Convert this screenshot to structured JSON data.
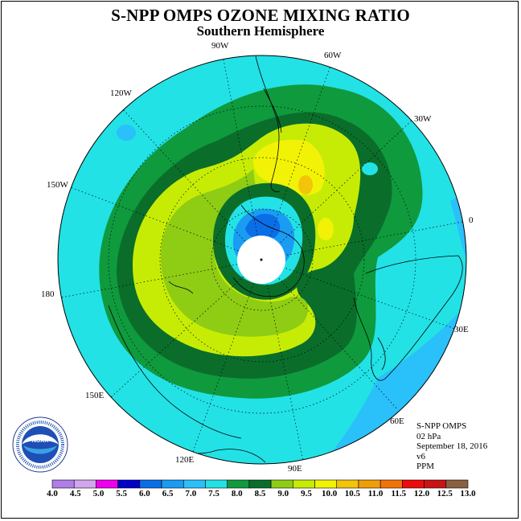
{
  "title": "S-NPP OMPS OZONE MIXING RATIO",
  "subtitle": "Southern Hemisphere",
  "longitude_labels": [
    {
      "id": "90W",
      "text": "90W"
    },
    {
      "id": "60W",
      "text": "60W"
    },
    {
      "id": "120W",
      "text": "120W"
    },
    {
      "id": "30W",
      "text": "30W"
    },
    {
      "id": "150W",
      "text": "150W"
    },
    {
      "id": "0",
      "text": "0"
    },
    {
      "id": "180",
      "text": "180"
    },
    {
      "id": "30E",
      "text": "30E"
    },
    {
      "id": "150E",
      "text": "150E"
    },
    {
      "id": "60E",
      "text": "60E"
    },
    {
      "id": "120E",
      "text": "120E"
    },
    {
      "id": "90E",
      "text": "90E"
    }
  ],
  "info": {
    "instrument": "S-NPP OMPS",
    "pressure": "02 hPa",
    "date": "September 18, 2016",
    "version": "v6",
    "units": "PPM"
  },
  "colorbar": {
    "ticks": [
      "4.0",
      "4.5",
      "5.0",
      "5.5",
      "6.0",
      "6.5",
      "7.0",
      "7.5",
      "8.0",
      "8.5",
      "9.0",
      "9.5",
      "10.0",
      "10.5",
      "11.0",
      "11.5",
      "12.0",
      "12.5",
      "13.0"
    ],
    "colors": [
      "#b07ee8",
      "#d3a5ee",
      "#ee00ee",
      "#0000c8",
      "#0a6ee6",
      "#1a9cf2",
      "#2ac0fa",
      "#22e2e6",
      "#0f9a3e",
      "#0a6e2a",
      "#8fcc14",
      "#c6ec06",
      "#f2f206",
      "#f2c40a",
      "#f09e08",
      "#f27208",
      "#ec0c0c",
      "#c81414",
      "#8a6040"
    ]
  },
  "logo": {
    "text": "NOAA",
    "ring_text": "NATIONAL OCEANIC AND ATMOSPHERIC ADMINISTRATION · U.S. DEPARTMENT OF COMMERCE"
  },
  "colors": {
    "cyan": "#22e2e6",
    "green_light": "#0f9a3e",
    "green_dark": "#0a6e2a",
    "lime": "#c6ec06",
    "yellow": "#f2f206",
    "blue": "#1a9cf2",
    "blue_deep": "#0a6ee6"
  }
}
